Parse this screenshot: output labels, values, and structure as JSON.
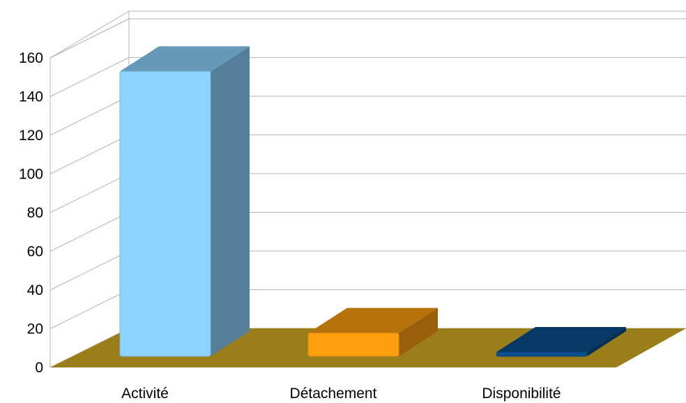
{
  "chart_data": {
    "type": "bar",
    "style": "3d-column",
    "categories": [
      "Activité",
      "Détachement",
      "Disponibilité"
    ],
    "values": [
      147,
      12,
      2
    ],
    "ylim": [
      0,
      160
    ],
    "yticks": [
      0,
      20,
      40,
      60,
      80,
      100,
      120,
      140,
      160
    ],
    "grid": true,
    "legend": "none",
    "colors": {
      "bars": [
        "#8dd4ff",
        "#ff9f0f",
        "#0a4f8f"
      ],
      "floor": "#9a7e19",
      "gridline": "#b3b3b3"
    }
  }
}
